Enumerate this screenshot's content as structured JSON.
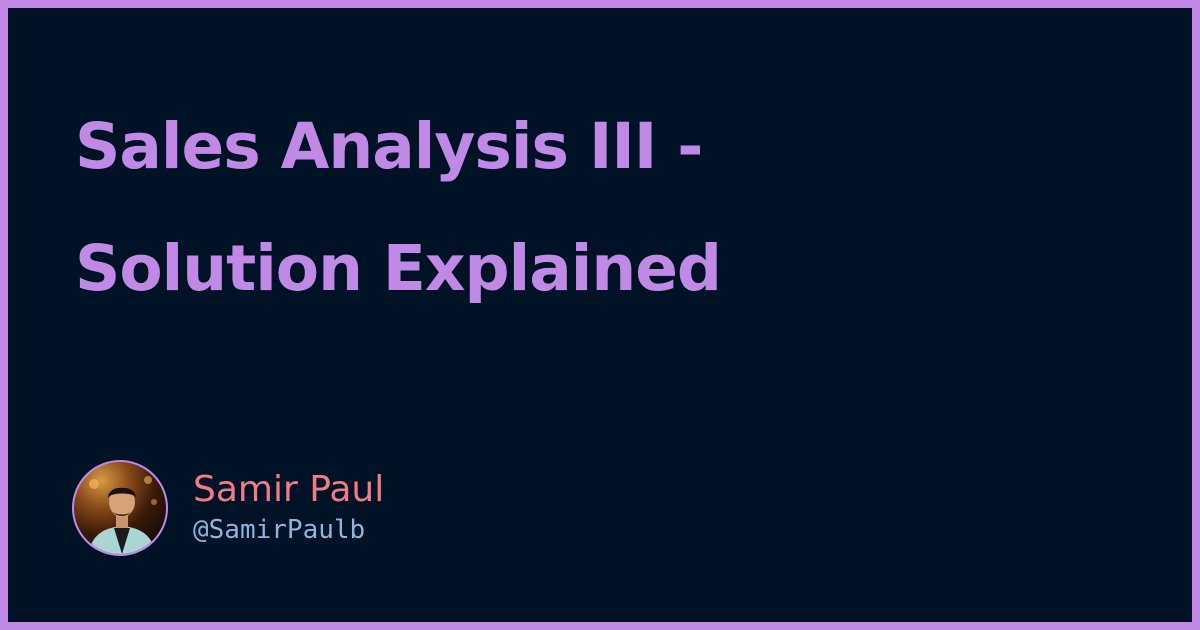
{
  "title": {
    "line1": "Sales Analysis III -",
    "line2": "Solution Explained"
  },
  "author": {
    "name": "Samir Paul",
    "handle": "@SamirPaulb"
  },
  "colors": {
    "frame": "#c189e6",
    "background": "#001225",
    "title": "#c189e6",
    "name": "#f27a86",
    "handle": "#8fb3d9"
  }
}
